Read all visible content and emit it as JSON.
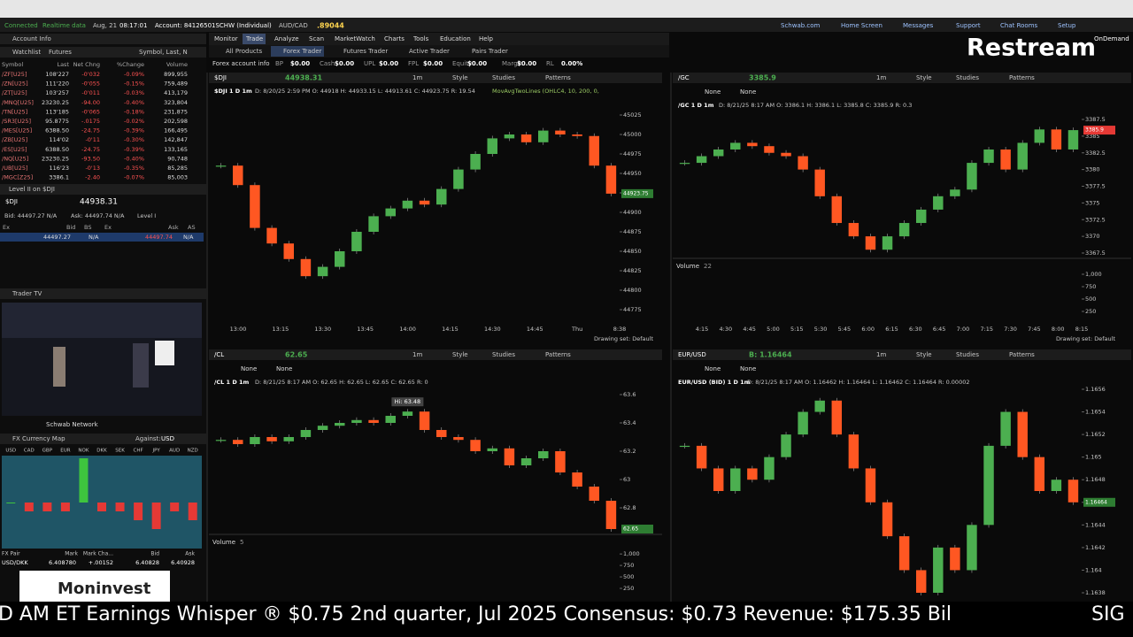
{
  "top_bar": {
    "status": "Connected",
    "feed": "Realtime data",
    "date": "Aug, 21",
    "time": "08:17:01",
    "account": "Account: 84126501SCHW (Individual)",
    "pair": "AUD/CAD",
    "pair_price": ".89044",
    "links": [
      "Schwab.com",
      "Home Screen",
      "Messages",
      "Support",
      "Chat Rooms",
      "Setup"
    ],
    "brand": "Restream",
    "on_demand": "OnDemand"
  },
  "nav": {
    "tabs": [
      "Monitor",
      "Trade",
      "Analyze",
      "Scan",
      "MarketWatch",
      "Charts",
      "Tools",
      "Education",
      "Help"
    ],
    "subtabs": [
      "All Products",
      "Forex Trader",
      "Futures Trader",
      "Active Trader",
      "Pairs Trader"
    ],
    "account_label": "Forex account info",
    "account_fields": [
      [
        "BP",
        "$0.00"
      ],
      [
        "Cash",
        "$0.00"
      ],
      [
        "UPL",
        "$0.00"
      ],
      [
        "FPL",
        "$0.00"
      ],
      [
        "Equity",
        "$0.00"
      ],
      [
        "Margin",
        "$0.00"
      ],
      [
        "RL",
        "0.00%"
      ]
    ]
  },
  "left": {
    "account_info": "Account Info",
    "watchlist": "Watchlist",
    "watchlist_kind": "Futures",
    "watchlist_cols": "Symbol, Last, N",
    "headers": [
      "Symbol",
      "Last",
      "Net Chng",
      "%Change",
      "Volume"
    ],
    "rows": [
      [
        "/ZF[U25]",
        "108'227",
        "-0'032",
        "-0.09%",
        "899,955"
      ],
      [
        "/ZN[U25]",
        "111'220",
        "-0'055",
        "-0.15%",
        "759,489"
      ],
      [
        "/ZT[U25]",
        "103'257",
        "-0'011",
        "-0.03%",
        "413,179"
      ],
      [
        "/MNQ[U25]",
        "23230.25",
        "-94.00",
        "-0.40%",
        "323,804"
      ],
      [
        "/TN[U25]",
        "113'185",
        "-0'065",
        "-0.18%",
        "231,875"
      ],
      [
        "/SR3[U25]",
        "95.8775",
        "-.0175",
        "-0.02%",
        "202,598"
      ],
      [
        "/MES[U25]",
        "6388.50",
        "-24.75",
        "-0.39%",
        "166,495"
      ],
      [
        "/ZB[U25]",
        "114'02",
        "-0'11",
        "-0.30%",
        "142,847"
      ],
      [
        "/ES[U25]",
        "6388.50",
        "-24.75",
        "-0.39%",
        "133,165"
      ],
      [
        "/NQ[U25]",
        "23230.25",
        "-93.50",
        "-0.40%",
        "90,748"
      ],
      [
        "/UB[U25]",
        "116'23",
        "-0'13",
        "-0.35%",
        "85,285"
      ],
      [
        "/MGC[Z25]",
        "3386.1",
        "-2.40",
        "-0.07%",
        "85,003"
      ]
    ],
    "level2_title": "Level II on $DJI",
    "level2_symbol": "$DJI",
    "level2_price": "44938.31",
    "bid": "Bid: 44497.27 N/A",
    "ask": "Ask: 44497.74 N/A",
    "level": "Level I",
    "level2_headers": [
      "Ex",
      "Bid",
      "BS",
      "Ex",
      "Ask",
      "AS"
    ],
    "level2_row": [
      "44497.27",
      "N/A",
      "44497.74",
      "N/A"
    ],
    "trader_tv": "Trader TV",
    "network": "Schwab Network",
    "fx_map": "FX Currency Map",
    "against": "Against:",
    "against_ccy": "USD",
    "currencies": [
      "USD",
      "CAD",
      "GBP",
      "EUR",
      "NOK",
      "DKK",
      "SEK",
      "CHF",
      "JPY",
      "AUD",
      "NZD"
    ],
    "currency_changes": [
      0,
      -0.1,
      -0.1,
      -0.1,
      0.5,
      -0.1,
      -0.1,
      -0.2,
      -0.3,
      -0.1,
      -0.2
    ],
    "fx_headers": [
      "FX Pair",
      "Mark",
      "Mark Cha...",
      "Bid",
      "Ask"
    ],
    "fx_row": [
      "USD/DKK",
      "6.408780",
      "+.00152",
      "6.40828",
      "6.40928"
    ],
    "watermark": "Moninvest"
  },
  "chart_toolbar": [
    "1m",
    "Style",
    "Studies",
    "Patterns"
  ],
  "none_label": "None",
  "drawing_set": "Drawing set: Default",
  "charts": [
    {
      "type": "candle",
      "symbol": "$DJI",
      "price": "44938.31",
      "title": "$DJI 1 D 1m",
      "info": "D: 8/20/25 2:59 PM  O: 44918  H: 44933.15  L: 44913.61  C: 44923.75  R: 19.54",
      "study": "MovAvgTwoLines (OHLC4, 10, 200, 0,",
      "last": "44923.75",
      "time_labels": [
        "13:00",
        "13:15",
        "13:30",
        "13:45",
        "14:00",
        "14:15",
        "14:30",
        "14:45",
        "Thu",
        "8:38"
      ],
      "ylim": [
        44775,
        45025
      ],
      "yticks": [
        45025,
        45000,
        44975,
        44950,
        44925,
        44900,
        44875,
        44850,
        44825,
        44800,
        44775
      ],
      "values": [
        44960,
        44935,
        44880,
        44860,
        44840,
        44818,
        44830,
        44850,
        44875,
        44895,
        44905,
        44915,
        44910,
        44930,
        44955,
        44975,
        44995,
        45000,
        44990,
        45005,
        45000,
        44998,
        44960,
        44924
      ]
    },
    {
      "type": "candle",
      "symbol": "/GC",
      "price": "3385.9",
      "title": "/GC 1 D 1m",
      "info": "D: 8/21/25 8:17 AM  O: 3386.1  H: 3386.1  L: 3385.8  C: 3385.9  R: 0.3",
      "last": "3385.9",
      "time_labels": [
        "4:15",
        "4:30",
        "4:45",
        "5:00",
        "5:15",
        "5:30",
        "5:45",
        "6:00",
        "6:15",
        "6:30",
        "6:45",
        "7:00",
        "7:15",
        "7:30",
        "7:45",
        "8:00",
        "8:15"
      ],
      "ylim": [
        3367.5,
        3387.5
      ],
      "yticks": [
        3387.5,
        3385,
        3382.5,
        3380,
        3377.5,
        3375,
        3372.5,
        3370,
        3367.5
      ],
      "values": [
        3381,
        3382,
        3383,
        3384,
        3383.5,
        3382.5,
        3382,
        3380,
        3376,
        3372,
        3370,
        3368,
        3370,
        3372,
        3374,
        3376,
        3377,
        3381,
        3383,
        3380,
        3384,
        3386,
        3383,
        3385.9
      ],
      "volume": {
        "label": "Volume",
        "count": 22,
        "ylim": [
          0,
          1250
        ],
        "yticks": [
          {
            "value": 1000,
            "label": "1,000"
          },
          750,
          500,
          250
        ]
      }
    },
    {
      "type": "candle",
      "symbol": "/CL",
      "price": "62.65",
      "title": "/CL 1 D 1m",
      "info": "D: 8/21/25 8:17 AM  O: 62.65  H: 62.65  L: 62.65  C: 62.65  R: 0",
      "note": "Hi: 63.48",
      "last": "62.65",
      "ylim": [
        62.7,
        63.6
      ],
      "yticks": [
        63.6,
        63.4,
        63.2,
        63,
        62.8
      ],
      "values": [
        63.28,
        63.25,
        63.3,
        63.27,
        63.3,
        63.35,
        63.38,
        63.4,
        63.42,
        63.4,
        63.45,
        63.48,
        63.35,
        63.3,
        63.28,
        63.2,
        63.22,
        63.1,
        63.15,
        63.2,
        63.05,
        62.95,
        62.85,
        62.65
      ],
      "volume": {
        "label": "Volume",
        "count": 5,
        "ylim": [
          0,
          1350
        ],
        "yticks": [
          {
            "value": 1000,
            "label": "1,000"
          },
          750,
          500,
          250
        ]
      }
    },
    {
      "type": "candle",
      "symbol": "EUR/USD",
      "price": "B: 1.16464",
      "title": "EUR/USD (BID) 1 D 1m",
      "info": "D: 8/21/25 8:17 AM  O: 1.16462  H: 1.16464  L: 1.16462  C: 1.16464  R: 0.00002",
      "last": "1.16464",
      "ylim": [
        1.1638,
        1.1656
      ],
      "yticks": [
        1.1656,
        1.1654,
        1.1652,
        1.165,
        1.1648,
        1.1646,
        1.1644,
        1.1642,
        1.164,
        1.1638
      ],
      "values": [
        1.1651,
        1.1649,
        1.1647,
        1.1649,
        1.1648,
        1.165,
        1.1652,
        1.1654,
        1.1655,
        1.1652,
        1.1649,
        1.1646,
        1.1643,
        1.164,
        1.1638,
        1.1642,
        1.164,
        1.1644,
        1.1651,
        1.1654,
        1.165,
        1.1647,
        1.1648,
        1.1646
      ]
    }
  ],
  "ticker": {
    "text": "D AM ET Earnings Whisper ® $0.75 2nd quarter, Jul 2025 Consensus: $0.73 Revenue: $175.35 Bil",
    "next": "SIG"
  }
}
